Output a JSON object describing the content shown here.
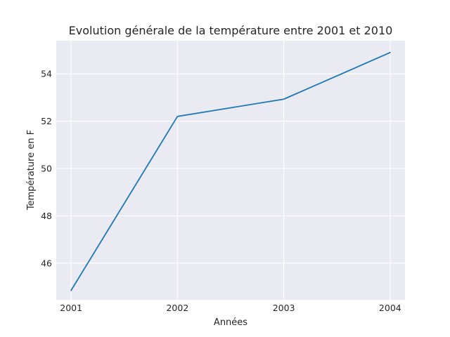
{
  "chart_data": {
    "type": "line",
    "title": "Evolution générale de la température entre 2001 et 2010",
    "xlabel": "Années",
    "ylabel": "Température en F",
    "x": [
      2001,
      2002,
      2003,
      2004
    ],
    "x_tick_labels": [
      "2001",
      "2002",
      "2003",
      "2004"
    ],
    "y_ticks": [
      46,
      48,
      50,
      52,
      54
    ],
    "y_tick_labels": [
      "46",
      "48",
      "50",
      "52",
      "54"
    ],
    "xlim": [
      2000.86,
      2004.14
    ],
    "ylim": [
      44.45,
      55.4
    ],
    "grid": true,
    "legend": "none",
    "series": [
      {
        "values": [
          44.85,
          52.2,
          52.93,
          54.9
        ],
        "color": "#1f77b4"
      }
    ]
  }
}
